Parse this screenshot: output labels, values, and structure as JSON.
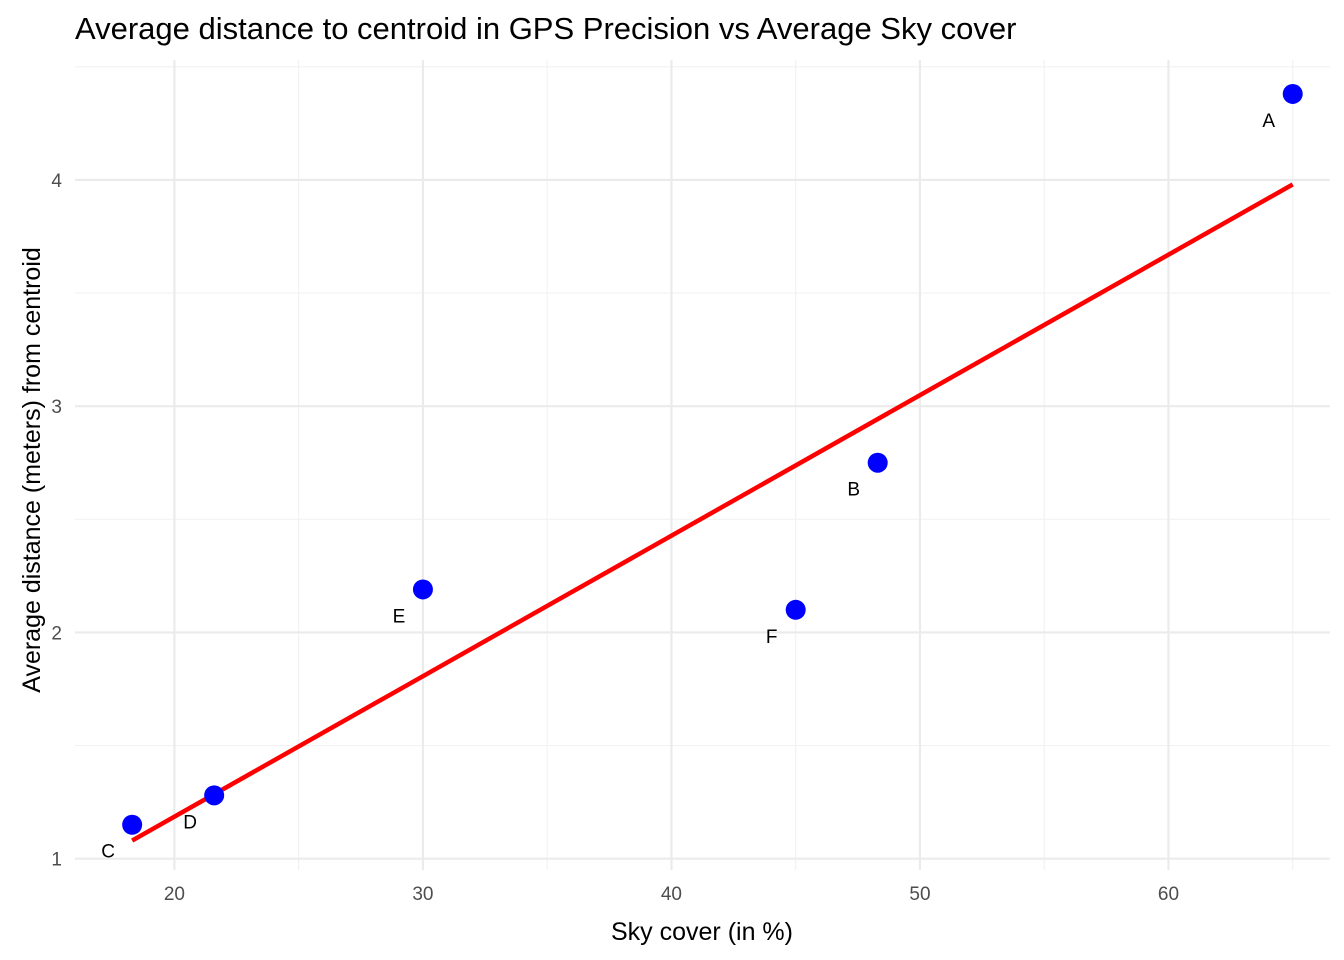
{
  "chart_data": {
    "type": "scatter",
    "title": "Average distance to centroid in GPS Precision vs Average Sky cover",
    "xlabel": "Sky cover (in %)",
    "ylabel": "Average distance (meters) from centroid",
    "xlim": [
      16,
      66.5
    ],
    "ylim": [
      0.95,
      4.53
    ],
    "x_ticks": [
      20,
      30,
      40,
      50,
      60
    ],
    "y_ticks": [
      1,
      2,
      3,
      4
    ],
    "x_tick_labels": [
      "20",
      "30",
      "40",
      "50",
      "60"
    ],
    "y_tick_labels": [
      "1",
      "2",
      "3",
      "4"
    ],
    "grid": true,
    "legend": "none",
    "series": [
      {
        "points": [
          {
            "label": "A",
            "x": 65.0,
            "y": 4.38
          },
          {
            "label": "B",
            "x": 48.3,
            "y": 2.75
          },
          {
            "label": "C",
            "x": 18.3,
            "y": 1.15
          },
          {
            "label": "D",
            "x": 21.6,
            "y": 1.28
          },
          {
            "label": "E",
            "x": 30.0,
            "y": 2.19
          },
          {
            "label": "F",
            "x": 45.0,
            "y": 2.1
          }
        ],
        "color": "#0000ff"
      }
    ],
    "trend_line": {
      "type": "linear fit",
      "x": [
        18.3,
        65.0
      ],
      "y": [
        1.08,
        3.98
      ],
      "color": "#ff0000"
    }
  }
}
